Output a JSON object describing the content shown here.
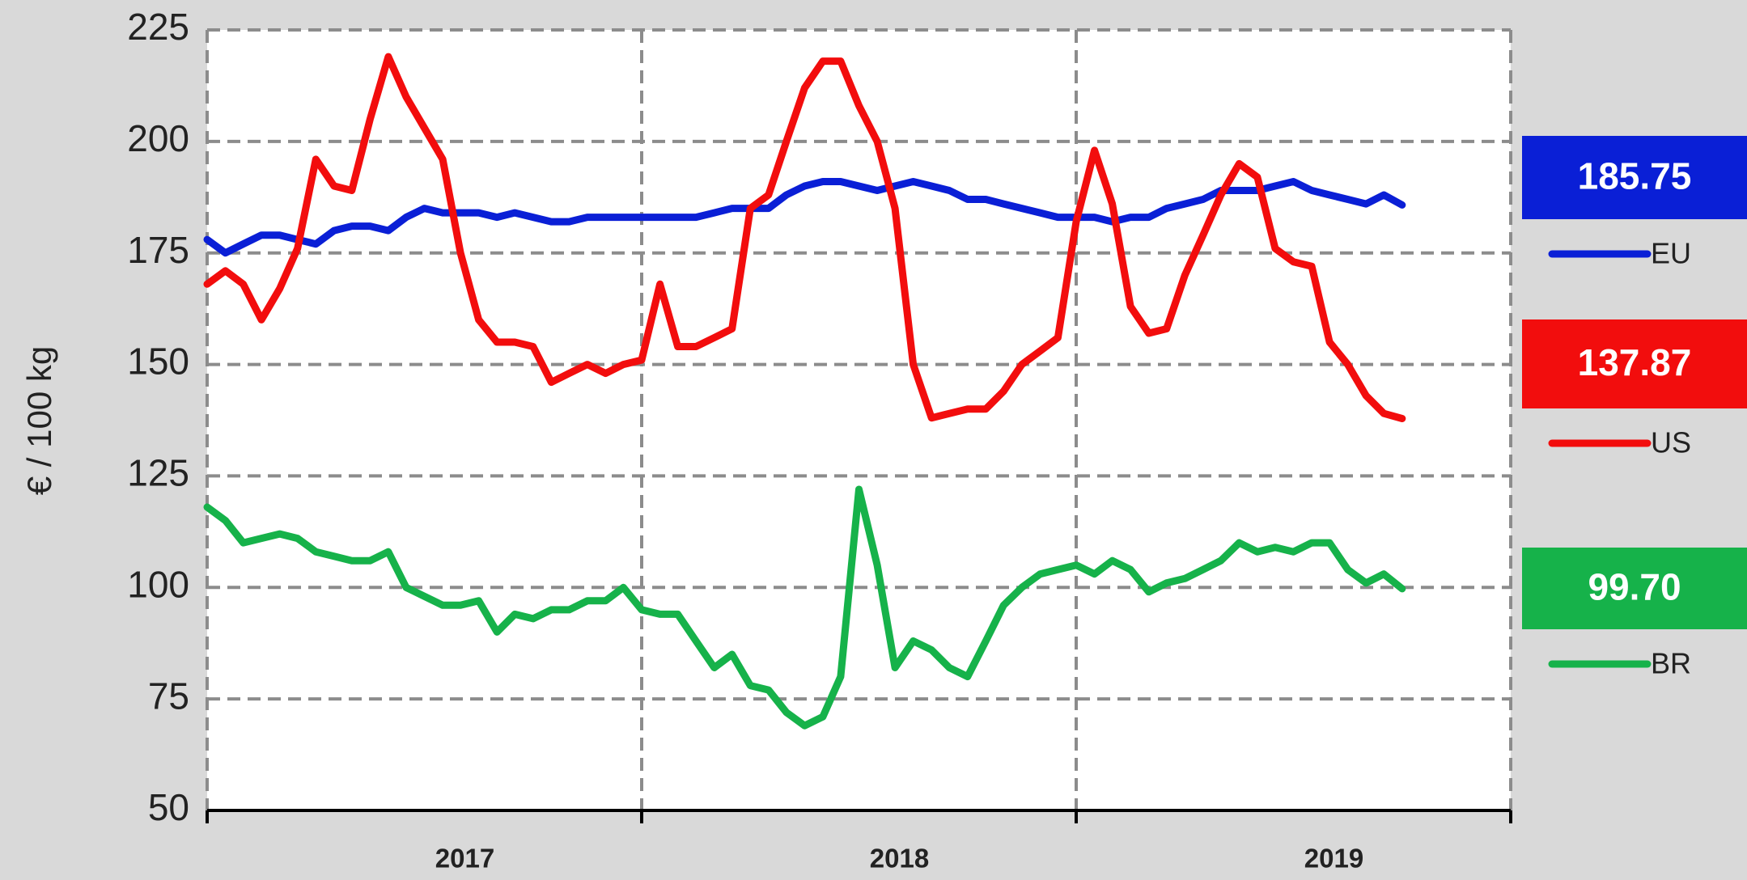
{
  "chart_data": {
    "type": "line",
    "y_label": "€ / 100 kg",
    "ylim": [
      50,
      225
    ],
    "yticks": [
      50,
      75,
      100,
      125,
      150,
      175,
      200,
      225
    ],
    "xlim": [
      2017,
      2020
    ],
    "xticks": [
      {
        "value": 2017.5,
        "label": "2017"
      },
      {
        "value": 2018.5,
        "label": "2018"
      },
      {
        "value": 2019.5,
        "label": "2019"
      }
    ],
    "xgrid": [
      2017,
      2018,
      2019,
      2020
    ],
    "grid": true,
    "legend": "right",
    "x": [
      2017,
      2017.042,
      2017.083,
      2017.125,
      2017.167,
      2017.208,
      2017.25,
      2017.292,
      2017.333,
      2017.375,
      2017.417,
      2017.458,
      2017.5,
      2017.542,
      2017.583,
      2017.625,
      2017.667,
      2017.708,
      2017.75,
      2017.792,
      2017.833,
      2017.875,
      2017.917,
      2017.958,
      2018,
      2018.042,
      2018.083,
      2018.125,
      2018.167,
      2018.208,
      2018.25,
      2018.292,
      2018.333,
      2018.375,
      2018.417,
      2018.458,
      2018.5,
      2018.542,
      2018.583,
      2018.625,
      2018.667,
      2018.708,
      2018.75,
      2018.792,
      2018.833,
      2018.875,
      2018.917,
      2018.958,
      2019,
      2019.042,
      2019.083,
      2019.125,
      2019.167,
      2019.208,
      2019.25,
      2019.292,
      2019.333,
      2019.375,
      2019.417,
      2019.458,
      2019.5,
      2019.542,
      2019.583,
      2019.625,
      2019.667,
      2019.708,
      2019.75
    ],
    "series": [
      {
        "name": "EU",
        "color": "#0a1fd6",
        "values": [
          178,
          175,
          177,
          179,
          179,
          178,
          177,
          180,
          181,
          181,
          180,
          183,
          185,
          184,
          184,
          184,
          183,
          184,
          183,
          182,
          182,
          183,
          183,
          183,
          183,
          183,
          183,
          183,
          184,
          185,
          185,
          185,
          188,
          190,
          191,
          191,
          190,
          189,
          190,
          191,
          190,
          189,
          187,
          187,
          186,
          185,
          184,
          183,
          183,
          183,
          182,
          183,
          183,
          185,
          186,
          187,
          189,
          189,
          189,
          190,
          191,
          189,
          188,
          187,
          186,
          188,
          185.75
        ],
        "value_labels": [
          null,
          null,
          null,
          null,
          null,
          null,
          null,
          null,
          null,
          null,
          null,
          null,
          null,
          null,
          null,
          null,
          null,
          null,
          null,
          null,
          null,
          null,
          null,
          null,
          null,
          null,
          null,
          null,
          null,
          null,
          null,
          null,
          null,
          null,
          null,
          null,
          null,
          null,
          null,
          null,
          null,
          null,
          null,
          null,
          null,
          null,
          null,
          null,
          null,
          null,
          null,
          null,
          null,
          null,
          null,
          null,
          null,
          null,
          null,
          null,
          null,
          null,
          null,
          null,
          null,
          null,
          "185.75"
        ]
      },
      {
        "name": "US",
        "color": "#f20d0d",
        "values": [
          168,
          171,
          168,
          160,
          167,
          176,
          196,
          190,
          189,
          205,
          219,
          210,
          203,
          196,
          175,
          160,
          155,
          155,
          154,
          146,
          148,
          150,
          148,
          150,
          151,
          168,
          154,
          154,
          156,
          158,
          185,
          188,
          200,
          212,
          218,
          218,
          208,
          200,
          185,
          150,
          138,
          139,
          140,
          140,
          144,
          150,
          153,
          156,
          182,
          198,
          186,
          163,
          157,
          158,
          170,
          179,
          188,
          195,
          192,
          176,
          173,
          172,
          155,
          150,
          143,
          139,
          137.87
        ],
        "value_labels": [
          null,
          null,
          null,
          null,
          null,
          null,
          null,
          null,
          null,
          null,
          null,
          null,
          null,
          null,
          null,
          null,
          null,
          null,
          null,
          null,
          null,
          null,
          null,
          null,
          null,
          null,
          null,
          null,
          null,
          null,
          null,
          null,
          null,
          null,
          null,
          null,
          null,
          null,
          null,
          null,
          null,
          null,
          null,
          null,
          null,
          null,
          null,
          null,
          null,
          null,
          null,
          null,
          null,
          null,
          null,
          null,
          null,
          null,
          null,
          null,
          null,
          null,
          null,
          null,
          null,
          null,
          "137.87"
        ]
      },
      {
        "name": "BR",
        "color": "#16b24a",
        "values": [
          118,
          115,
          110,
          111,
          112,
          111,
          108,
          107,
          106,
          106,
          108,
          100,
          98,
          96,
          96,
          97,
          90,
          94,
          93,
          95,
          95,
          97,
          97,
          100,
          95,
          94,
          94,
          88,
          82,
          85,
          78,
          77,
          72,
          69,
          71,
          80,
          122,
          105,
          82,
          88,
          86,
          82,
          80,
          88,
          96,
          100,
          103,
          104,
          105,
          103,
          106,
          104,
          99,
          101,
          102,
          104,
          106,
          110,
          108,
          109,
          108,
          110,
          110,
          104,
          101,
          103,
          99.7
        ],
        "value_labels": [
          null,
          null,
          null,
          null,
          null,
          null,
          null,
          null,
          null,
          null,
          null,
          null,
          null,
          null,
          null,
          null,
          null,
          null,
          null,
          null,
          null,
          null,
          null,
          null,
          null,
          null,
          null,
          null,
          null,
          null,
          null,
          null,
          null,
          null,
          null,
          null,
          null,
          null,
          null,
          null,
          null,
          null,
          null,
          null,
          null,
          null,
          null,
          null,
          null,
          null,
          null,
          null,
          null,
          null,
          null,
          null,
          null,
          null,
          null,
          null,
          null,
          null,
          null,
          null,
          null,
          null,
          "99.70"
        ]
      }
    ]
  }
}
